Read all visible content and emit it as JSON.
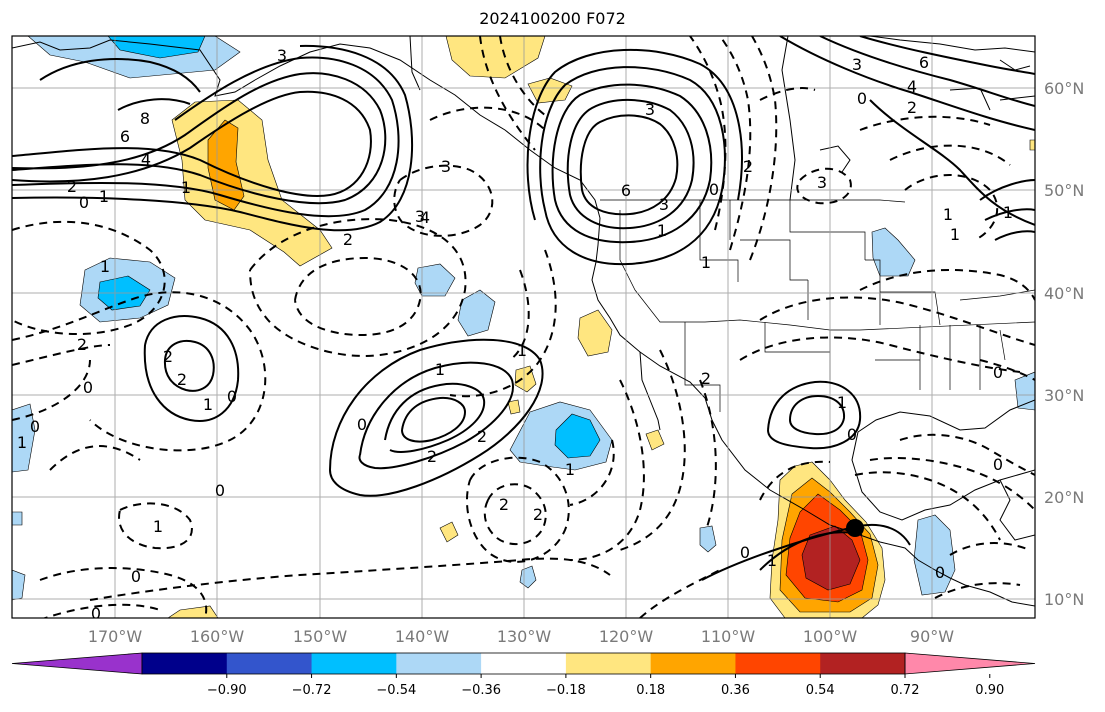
{
  "title": "2024100200 F072",
  "lon_labels": [
    "170°W",
    "160°W",
    "150°W",
    "140°W",
    "130°W",
    "120°W",
    "110°W",
    "100°W",
    "90°W"
  ],
  "lat_labels": [
    "60°N",
    "50°N",
    "40°N",
    "30°N",
    "20°N",
    "10°N"
  ],
  "colorbar": {
    "colors": [
      "#9932cc",
      "#00008b",
      "#3355cc",
      "#00bfff",
      "#add8f6",
      "#ffffff",
      "#ffe680",
      "#ffa500",
      "#ff4500",
      "#b22222",
      "#ff88aa"
    ],
    "tick_labels": [
      "−0.90",
      "−0.72",
      "−0.54",
      "−0.36",
      "−0.18",
      "0.18",
      "0.36",
      "0.54",
      "0.72",
      "0.90"
    ]
  },
  "contour_labels": [
    "8",
    "6",
    "4",
    "2",
    "1",
    "0",
    "1",
    "2",
    "3",
    "4",
    "3",
    "2",
    "0",
    "1",
    "2",
    "0",
    "2",
    "1",
    "0",
    "1",
    "0",
    "1",
    "1",
    "2",
    "0",
    "0",
    "0",
    "2",
    "1",
    "1",
    "2",
    "3",
    "2",
    "0",
    "1",
    "0",
    "1",
    "2",
    "3",
    "6",
    "3",
    "2",
    "1",
    "0",
    "1",
    "3",
    "3",
    "4",
    "6",
    "2",
    "0",
    "0",
    "1",
    "1",
    "0",
    "1",
    "0"
  ],
  "marker": "storm-center"
}
